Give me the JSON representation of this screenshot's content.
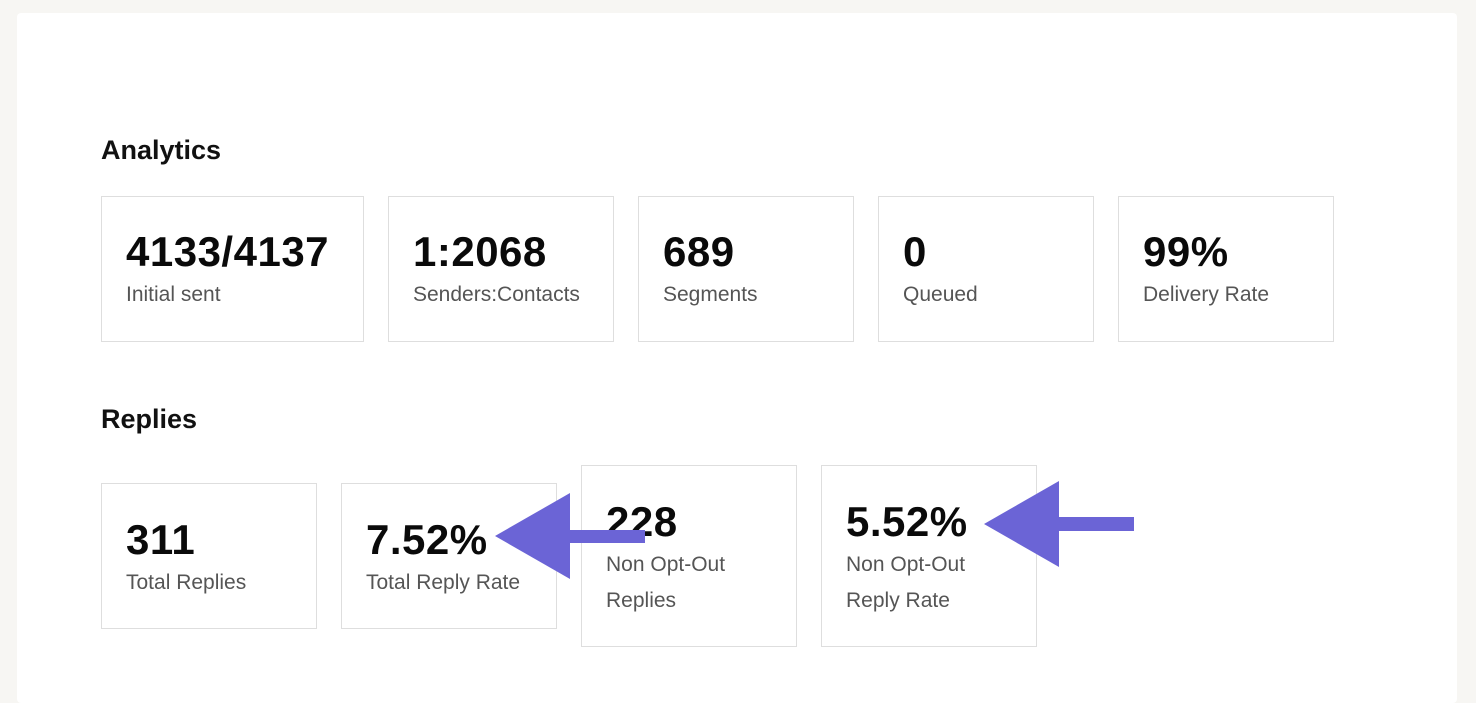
{
  "analytics": {
    "title": "Analytics",
    "cards": [
      {
        "value": "4133/4137",
        "label": "Initial sent"
      },
      {
        "value": "1:2068",
        "label": "Senders:Contacts"
      },
      {
        "value": "689",
        "label": "Segments"
      },
      {
        "value": "0",
        "label": "Queued"
      },
      {
        "value": "99%",
        "label": "Delivery Rate"
      }
    ]
  },
  "replies": {
    "title": "Replies",
    "cards": [
      {
        "value": "311",
        "label": "Total Replies"
      },
      {
        "value": "7.52%",
        "label": "Total Reply Rate"
      },
      {
        "value": "228",
        "label": "Non Opt-Out Replies"
      },
      {
        "value": "5.52%",
        "label": "Non Opt-Out Reply Rate"
      }
    ]
  },
  "annotation": {
    "arrow_color": "#6b64d6"
  }
}
